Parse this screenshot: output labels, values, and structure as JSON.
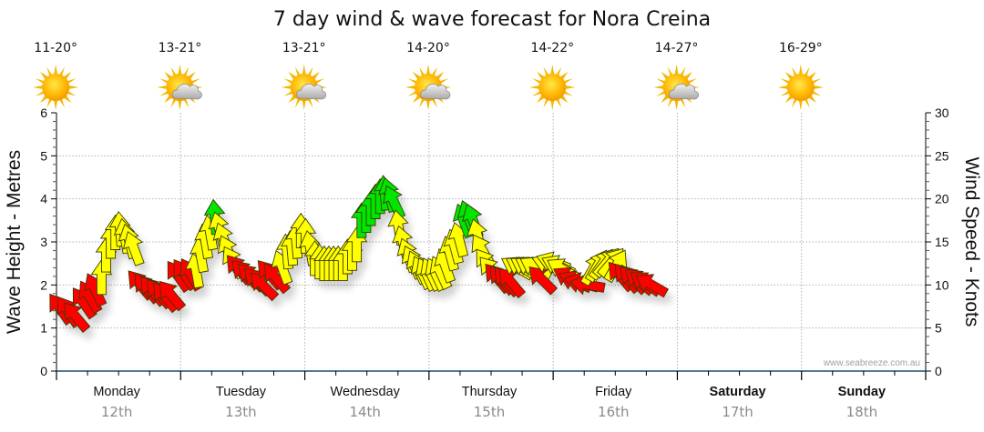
{
  "chart_data": {
    "type": "line",
    "title": "7 day wind & wave forecast for Nora Creina",
    "ylabel_left": "Wave Height - Metres",
    "ylabel_right": "Wind Speed - Knots",
    "ylim_left": [
      0,
      6
    ],
    "ylim_right": [
      0,
      30
    ],
    "yticks_left": [
      "0",
      "1",
      "2",
      "3",
      "4",
      "5",
      "6"
    ],
    "yticks_right": [
      "0",
      "5",
      "10",
      "15",
      "20",
      "25",
      "30"
    ],
    "grid": true,
    "credit": "www.seabreeze.com.au",
    "days": [
      {
        "day": "Monday",
        "date": "12th",
        "temp": "11-20°",
        "weather": "sunny-icon",
        "bold": false
      },
      {
        "day": "Tuesday",
        "date": "13th",
        "temp": "13-21°",
        "weather": "partly-cloudy-icon",
        "bold": false
      },
      {
        "day": "Wednesday",
        "date": "14th",
        "temp": "13-21°",
        "weather": "partly-cloudy-icon",
        "bold": false
      },
      {
        "day": "Thursday",
        "date": "15th",
        "temp": "14-20°",
        "weather": "partly-cloudy-icon",
        "bold": false
      },
      {
        "day": "Friday",
        "date": "16th",
        "temp": "14-22°",
        "weather": "sunny-icon",
        "bold": false
      },
      {
        "day": "Saturday",
        "date": "17th",
        "temp": "14-27°",
        "weather": "partly-cloudy-icon",
        "bold": true
      },
      {
        "day": "Sunday",
        "date": "18th",
        "temp": "16-29°",
        "weather": "sunny-icon",
        "bold": true
      }
    ],
    "colors": {
      "red": "#ff0000",
      "yellow": "#ffff00",
      "green": "#00e600",
      "outline": "#333300",
      "grid": "#b0b0b0",
      "axis": "#1f4e6e"
    },
    "wind_series": {
      "name": "Wind Speed (knots) & direction",
      "unit_hours": 1.5,
      "points": [
        {
          "t": 0.5,
          "kn": 7.2,
          "dir": -35,
          "c": "red"
        },
        {
          "t": 1.5,
          "kn": 6.9,
          "dir": -35,
          "c": "red"
        },
        {
          "t": 2.5,
          "kn": 6.3,
          "dir": -40,
          "c": "red"
        },
        {
          "t": 3.5,
          "kn": 7.9,
          "dir": -35,
          "c": "red"
        },
        {
          "t": 4.3,
          "kn": 8.6,
          "dir": -30,
          "c": "red"
        },
        {
          "t": 5.0,
          "kn": 9.4,
          "dir": -25,
          "c": "red"
        },
        {
          "t": 5.8,
          "kn": 10.8,
          "dir": 0,
          "c": "yellow"
        },
        {
          "t": 6.4,
          "kn": 13.4,
          "dir": 0,
          "c": "yellow"
        },
        {
          "t": 7.0,
          "kn": 15.0,
          "dir": 0,
          "c": "yellow"
        },
        {
          "t": 7.6,
          "kn": 16.0,
          "dir": 0,
          "c": "yellow"
        },
        {
          "t": 8.2,
          "kn": 16.4,
          "dir": -5,
          "c": "yellow"
        },
        {
          "t": 8.8,
          "kn": 15.6,
          "dir": -10,
          "c": "yellow"
        },
        {
          "t": 9.4,
          "kn": 15.0,
          "dir": -15,
          "c": "yellow"
        },
        {
          "t": 10.0,
          "kn": 14.2,
          "dir": -20,
          "c": "yellow"
        },
        {
          "t": 10.8,
          "kn": 10.0,
          "dir": -40,
          "c": "red"
        },
        {
          "t": 11.6,
          "kn": 9.6,
          "dir": -40,
          "c": "red"
        },
        {
          "t": 12.4,
          "kn": 9.3,
          "dir": -40,
          "c": "red"
        },
        {
          "t": 13.2,
          "kn": 9.0,
          "dir": -40,
          "c": "red"
        },
        {
          "t": 14.0,
          "kn": 8.6,
          "dir": -40,
          "c": "red"
        },
        {
          "t": 14.8,
          "kn": 8.8,
          "dir": -40,
          "c": "red"
        },
        {
          "t": 15.7,
          "kn": 11.0,
          "dir": -35,
          "c": "red"
        },
        {
          "t": 16.5,
          "kn": 11.2,
          "dir": -35,
          "c": "red"
        },
        {
          "t": 17.3,
          "kn": 11.2,
          "dir": -30,
          "c": "red"
        },
        {
          "t": 18.0,
          "kn": 11.6,
          "dir": -10,
          "c": "yellow"
        },
        {
          "t": 18.6,
          "kn": 13.4,
          "dir": -10,
          "c": "yellow"
        },
        {
          "t": 19.2,
          "kn": 15.0,
          "dir": -10,
          "c": "yellow"
        },
        {
          "t": 19.8,
          "kn": 16.0,
          "dir": -10,
          "c": "yellow"
        },
        {
          "t": 20.4,
          "kn": 17.8,
          "dir": -5,
          "c": "green"
        },
        {
          "t": 21.0,
          "kn": 16.4,
          "dir": -15,
          "c": "yellow"
        },
        {
          "t": 21.6,
          "kn": 15.2,
          "dir": -20,
          "c": "yellow"
        },
        {
          "t": 22.2,
          "kn": 13.8,
          "dir": -25,
          "c": "yellow"
        },
        {
          "t": 22.8,
          "kn": 12.6,
          "dir": -30,
          "c": "yellow"
        },
        {
          "t": 23.5,
          "kn": 11.8,
          "dir": -40,
          "c": "red"
        },
        {
          "t": 24.3,
          "kn": 11.3,
          "dir": -45,
          "c": "red"
        },
        {
          "t": 25.1,
          "kn": 10.9,
          "dir": -45,
          "c": "red"
        },
        {
          "t": 25.9,
          "kn": 10.4,
          "dir": -45,
          "c": "red"
        },
        {
          "t": 26.7,
          "kn": 9.9,
          "dir": -45,
          "c": "red"
        },
        {
          "t": 27.5,
          "kn": 11.2,
          "dir": -40,
          "c": "red"
        },
        {
          "t": 28.3,
          "kn": 10.8,
          "dir": -40,
          "c": "red"
        },
        {
          "t": 29.1,
          "kn": 12.0,
          "dir": -20,
          "c": "yellow"
        },
        {
          "t": 29.7,
          "kn": 13.8,
          "dir": -5,
          "c": "yellow"
        },
        {
          "t": 30.3,
          "kn": 14.2,
          "dir": -5,
          "c": "yellow"
        },
        {
          "t": 30.9,
          "kn": 15.0,
          "dir": -5,
          "c": "yellow"
        },
        {
          "t": 31.5,
          "kn": 16.2,
          "dir": 0,
          "c": "yellow"
        },
        {
          "t": 32.1,
          "kn": 15.6,
          "dir": 0,
          "c": "yellow"
        },
        {
          "t": 32.7,
          "kn": 14.2,
          "dir": -10,
          "c": "yellow"
        },
        {
          "t": 33.3,
          "kn": 13.0,
          "dir": 0,
          "c": "yellow"
        },
        {
          "t": 33.9,
          "kn": 12.6,
          "dir": 0,
          "c": "yellow"
        },
        {
          "t": 34.5,
          "kn": 12.4,
          "dir": 0,
          "c": "yellow"
        },
        {
          "t": 35.1,
          "kn": 12.4,
          "dir": 0,
          "c": "yellow"
        },
        {
          "t": 35.7,
          "kn": 12.4,
          "dir": 0,
          "c": "yellow"
        },
        {
          "t": 36.3,
          "kn": 12.4,
          "dir": 0,
          "c": "yellow"
        },
        {
          "t": 36.9,
          "kn": 12.4,
          "dir": 0,
          "c": "yellow"
        },
        {
          "t": 37.5,
          "kn": 13.2,
          "dir": 0,
          "c": "yellow"
        },
        {
          "t": 38.1,
          "kn": 13.6,
          "dir": 0,
          "c": "yellow"
        },
        {
          "t": 38.7,
          "kn": 14.6,
          "dir": 0,
          "c": "yellow"
        },
        {
          "t": 39.3,
          "kn": 17.4,
          "dir": 0,
          "c": "green"
        },
        {
          "t": 39.9,
          "kn": 18.0,
          "dir": 0,
          "c": "green"
        },
        {
          "t": 40.5,
          "kn": 18.8,
          "dir": 0,
          "c": "green"
        },
        {
          "t": 41.1,
          "kn": 19.6,
          "dir": 0,
          "c": "green"
        },
        {
          "t": 41.7,
          "kn": 20.2,
          "dir": 0,
          "c": "green"
        },
        {
          "t": 42.3,
          "kn": 20.6,
          "dir": -5,
          "c": "green"
        },
        {
          "t": 42.9,
          "kn": 20.4,
          "dir": -15,
          "c": "green"
        },
        {
          "t": 43.5,
          "kn": 19.6,
          "dir": -25,
          "c": "green"
        },
        {
          "t": 44.1,
          "kn": 16.6,
          "dir": -10,
          "c": "yellow"
        },
        {
          "t": 44.7,
          "kn": 14.8,
          "dir": -15,
          "c": "yellow"
        },
        {
          "t": 45.3,
          "kn": 13.4,
          "dir": -20,
          "c": "yellow"
        },
        {
          "t": 45.9,
          "kn": 12.6,
          "dir": -25,
          "c": "yellow"
        },
        {
          "t": 46.5,
          "kn": 12.0,
          "dir": -25,
          "c": "yellow"
        },
        {
          "t": 47.1,
          "kn": 11.4,
          "dir": -25,
          "c": "yellow"
        },
        {
          "t": 47.7,
          "kn": 11.2,
          "dir": -25,
          "c": "yellow"
        },
        {
          "t": 48.3,
          "kn": 11.2,
          "dir": -25,
          "c": "yellow"
        },
        {
          "t": 48.9,
          "kn": 11.2,
          "dir": -25,
          "c": "yellow"
        },
        {
          "t": 49.5,
          "kn": 11.4,
          "dir": -25,
          "c": "yellow"
        },
        {
          "t": 50.1,
          "kn": 12.2,
          "dir": -20,
          "c": "yellow"
        },
        {
          "t": 50.7,
          "kn": 13.6,
          "dir": -15,
          "c": "yellow"
        },
        {
          "t": 51.3,
          "kn": 14.4,
          "dir": -15,
          "c": "yellow"
        },
        {
          "t": 51.9,
          "kn": 15.2,
          "dir": -15,
          "c": "yellow"
        },
        {
          "t": 52.5,
          "kn": 17.4,
          "dir": -20,
          "c": "green"
        },
        {
          "t": 53.1,
          "kn": 17.8,
          "dir": -20,
          "c": "green"
        },
        {
          "t": 53.7,
          "kn": 17.4,
          "dir": -20,
          "c": "green"
        },
        {
          "t": 54.3,
          "kn": 15.6,
          "dir": -15,
          "c": "yellow"
        },
        {
          "t": 54.9,
          "kn": 14.0,
          "dir": -30,
          "c": "yellow"
        },
        {
          "t": 55.5,
          "kn": 12.4,
          "dir": -35,
          "c": "yellow"
        },
        {
          "t": 56.1,
          "kn": 11.6,
          "dir": -40,
          "c": "yellow"
        },
        {
          "t": 56.8,
          "kn": 10.8,
          "dir": -40,
          "c": "red"
        },
        {
          "t": 57.4,
          "kn": 10.6,
          "dir": -40,
          "c": "red"
        },
        {
          "t": 58.0,
          "kn": 10.4,
          "dir": -40,
          "c": "red"
        },
        {
          "t": 58.6,
          "kn": 10.3,
          "dir": -40,
          "c": "red"
        },
        {
          "t": 59.4,
          "kn": 12.0,
          "dir": -60,
          "c": "yellow"
        },
        {
          "t": 60.0,
          "kn": 12.0,
          "dir": -60,
          "c": "yellow"
        },
        {
          "t": 60.6,
          "kn": 12.0,
          "dir": -60,
          "c": "yellow"
        },
        {
          "t": 61.2,
          "kn": 12.0,
          "dir": -60,
          "c": "yellow"
        },
        {
          "t": 61.8,
          "kn": 12.0,
          "dir": -60,
          "c": "yellow"
        },
        {
          "t": 62.6,
          "kn": 10.6,
          "dir": -45,
          "c": "red"
        },
        {
          "t": 63.5,
          "kn": 12.4,
          "dir": -70,
          "c": "yellow"
        },
        {
          "t": 64.1,
          "kn": 12.6,
          "dir": -70,
          "c": "yellow"
        },
        {
          "t": 64.7,
          "kn": 12.2,
          "dir": -65,
          "c": "yellow"
        },
        {
          "t": 65.3,
          "kn": 11.8,
          "dir": -60,
          "c": "yellow"
        },
        {
          "t": 66.1,
          "kn": 10.8,
          "dir": -60,
          "c": "red"
        },
        {
          "t": 66.9,
          "kn": 10.4,
          "dir": -65,
          "c": "red"
        },
        {
          "t": 67.7,
          "kn": 10.2,
          "dir": -75,
          "c": "red"
        },
        {
          "t": 68.5,
          "kn": 10.0,
          "dir": -80,
          "c": "red"
        },
        {
          "t": 69.1,
          "kn": 11.8,
          "dir": 30,
          "c": "yellow"
        },
        {
          "t": 69.7,
          "kn": 12.2,
          "dir": 30,
          "c": "yellow"
        },
        {
          "t": 70.3,
          "kn": 12.4,
          "dir": 35,
          "c": "yellow"
        },
        {
          "t": 70.9,
          "kn": 12.6,
          "dir": 40,
          "c": "yellow"
        },
        {
          "t": 71.5,
          "kn": 12.6,
          "dir": 40,
          "c": "yellow"
        },
        {
          "t": 72.1,
          "kn": 12.2,
          "dir": 30,
          "c": "yellow"
        },
        {
          "t": 72.7,
          "kn": 11.0,
          "dir": -40,
          "c": "red"
        },
        {
          "t": 73.5,
          "kn": 10.8,
          "dir": -40,
          "c": "red"
        },
        {
          "t": 74.3,
          "kn": 10.6,
          "dir": -45,
          "c": "red"
        },
        {
          "t": 75.1,
          "kn": 10.4,
          "dir": -50,
          "c": "red"
        },
        {
          "t": 75.9,
          "kn": 10.2,
          "dir": -55,
          "c": "red"
        },
        {
          "t": 76.7,
          "kn": 10.0,
          "dir": -60,
          "c": "red"
        }
      ]
    }
  }
}
